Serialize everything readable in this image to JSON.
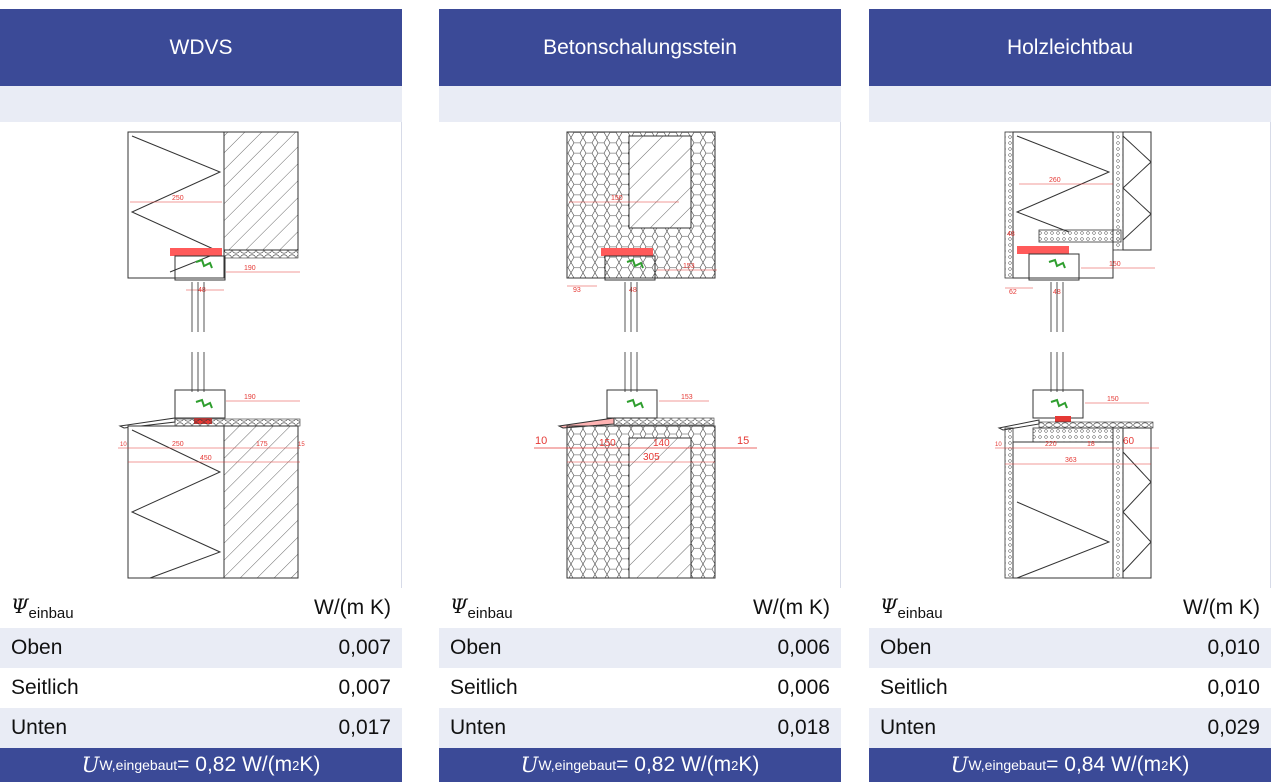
{
  "panels": [
    {
      "title": "WDVS",
      "psi_symbol": "Ψ",
      "psi_sub": "einbau",
      "unit": "W/(m K)",
      "rows": [
        {
          "label": "Oben",
          "value": "0,007"
        },
        {
          "label": "Seitlich",
          "value": "0,007"
        },
        {
          "label": "Unten",
          "value": "0,017"
        }
      ],
      "footer": {
        "u": "U",
        "sub": "W,eingebaut",
        "eq": " = 0,82 W/(m",
        "sup": "2",
        "tail": " K)"
      },
      "drawing_labels": {
        "top_dim_a": "250",
        "top_dim_b": "190",
        "top_dim_c": "48",
        "top_dim_d": "48",
        "bot_dim_a": "190",
        "bot_dim_b": "10",
        "bot_dim_c": "250",
        "bot_dim_d": "175",
        "bot_dim_e": "15",
        "bot_dim_f": "450"
      }
    },
    {
      "title": "Betonschalungsstein",
      "psi_symbol": "Ψ",
      "psi_sub": "einbau",
      "unit": "W/(m K)",
      "rows": [
        {
          "label": "Oben",
          "value": "0,006"
        },
        {
          "label": "Seitlich",
          "value": "0,006"
        },
        {
          "label": "Unten",
          "value": "0,018"
        }
      ],
      "footer": {
        "u": "U",
        "sub": "W,eingebaut",
        "eq": " = 0,82 W/(m",
        "sup": "2",
        "tail": " K)"
      },
      "drawing_labels": {
        "top_dim_a": "150",
        "top_dim_b": "153",
        "top_dim_c": "93",
        "top_dim_d": "48",
        "bot_dim_a": "153",
        "bot_dim_b": "10",
        "bot_dim_c": "150",
        "bot_dim_d": "140",
        "bot_dim_e": "15",
        "bot_dim_f": "305"
      }
    },
    {
      "title": "Holzleichtbau",
      "psi_symbol": "Ψ",
      "psi_sub": "einbau",
      "unit": "W/(m K)",
      "rows": [
        {
          "label": "Oben",
          "value": "0,010"
        },
        {
          "label": "Seitlich",
          "value": "0,010"
        },
        {
          "label": "Unten",
          "value": "0,029"
        }
      ],
      "footer": {
        "u": "U",
        "sub": "W,eingebaut",
        "eq": " = 0,84 W/(m",
        "sup": "2",
        "tail": " K)"
      },
      "drawing_labels": {
        "top_dim_a": "260",
        "top_dim_b": "150",
        "top_dim_c": "62",
        "top_dim_d": "48",
        "top_dim_e": "48",
        "bot_dim_a": "150",
        "bot_dim_b": "10",
        "bot_dim_c": "220",
        "bot_dim_d": "18",
        "bot_dim_e": "60",
        "bot_dim_f": "363"
      }
    }
  ],
  "colors": {
    "header_bg": "#3b4a97",
    "band_bg": "#e9ecf5",
    "dim_red": "#e53935",
    "seal_red": "#ff5a5a",
    "seal_green": "#2e9e2e"
  }
}
